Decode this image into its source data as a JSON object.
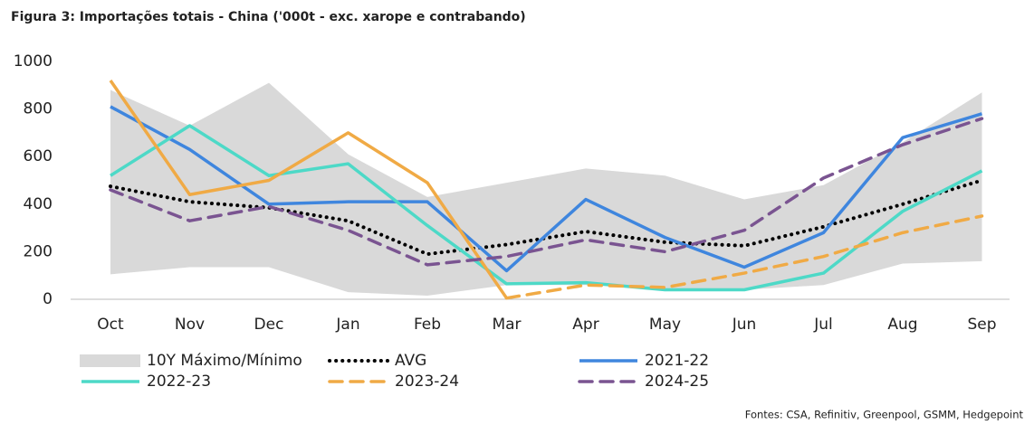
{
  "chart_data": {
    "type": "line",
    "title": "Figura 3: Importações totais - China ('000t - exc. xarope e contrabando)",
    "source": "Fontes: CSA, Refinitiv, Greenpool, GSMM, Hedgepoint",
    "categories": [
      "Oct",
      "Nov",
      "Dec",
      "Jan",
      "Feb",
      "Mar",
      "Apr",
      "May",
      "Jun",
      "Jul",
      "Aug",
      "Sep"
    ],
    "ylim": [
      0,
      1000
    ],
    "yticks": [
      0,
      200,
      400,
      600,
      800,
      1000
    ],
    "band": {
      "name": "10Y Máximo/Mínimo",
      "color": "#d9d9d9",
      "max": [
        880,
        730,
        910,
        610,
        430,
        490,
        550,
        520,
        420,
        480,
        660,
        870
      ],
      "min": [
        105,
        135,
        135,
        30,
        15,
        60,
        60,
        45,
        40,
        60,
        150,
        160
      ]
    },
    "series": [
      {
        "name": "AVG",
        "color": "#000000",
        "dash": "dotted",
        "values": [
          475,
          410,
          385,
          330,
          190,
          230,
          285,
          240,
          225,
          305,
          400,
          500
        ]
      },
      {
        "name": "2021-22",
        "color": "#3f86de",
        "dash": "solid",
        "values": [
          810,
          630,
          400,
          410,
          410,
          120,
          420,
          260,
          135,
          280,
          680,
          780
        ]
      },
      {
        "name": "2022-23",
        "color": "#4dd9c7",
        "dash": "solid",
        "values": [
          520,
          730,
          520,
          570,
          310,
          65,
          70,
          40,
          40,
          110,
          370,
          540
        ]
      },
      {
        "name": "2023-24",
        "color": "#f0aa45",
        "dash": "dashed",
        "dashed_from": "Mar",
        "values": [
          920,
          440,
          500,
          700,
          490,
          5,
          60,
          50,
          110,
          180,
          280,
          350
        ]
      },
      {
        "name": "2024-25",
        "color": "#7a5491",
        "dash": "dashed",
        "values": [
          460,
          330,
          390,
          290,
          145,
          180,
          250,
          200,
          290,
          510,
          650,
          760
        ]
      }
    ]
  }
}
